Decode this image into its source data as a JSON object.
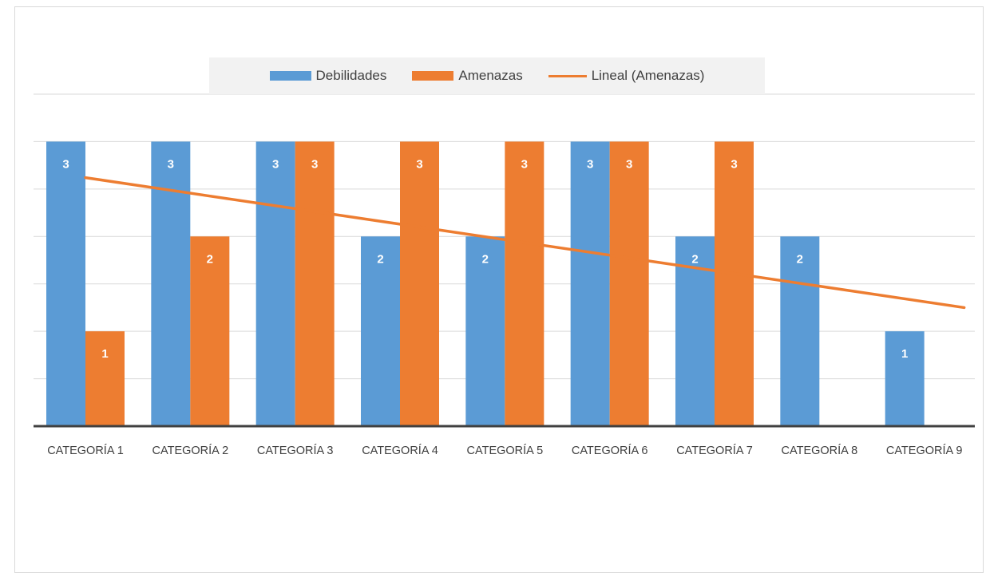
{
  "chart_data": {
    "type": "bar",
    "categories": [
      "CATEGORÍA 1",
      "CATEGORÍA 2",
      "CATEGORÍA 3",
      "CATEGORÍA 4",
      "CATEGORÍA 5",
      "CATEGORÍA 6",
      "CATEGORÍA 7",
      "CATEGORÍA 8",
      "CATEGORÍA 9"
    ],
    "series": [
      {
        "name": "Debilidades",
        "values": [
          3,
          3,
          3,
          2,
          2,
          3,
          2,
          2,
          1
        ],
        "color": "#5b9bd5"
      },
      {
        "name": "Amenazas",
        "values": [
          1,
          2,
          3,
          3,
          3,
          3,
          3,
          null,
          null
        ],
        "color": "#ed7d31"
      }
    ],
    "trendline": {
      "name": "Lineal (Amenazas)",
      "type": "linear",
      "color": "#ed7d31",
      "start": 2.62,
      "end": 1.25
    },
    "ylim": [
      0,
      3.5
    ],
    "gridlines": [
      0.5,
      1,
      1.5,
      2,
      2.5,
      3,
      3.5
    ],
    "grid": true,
    "legend": "top",
    "data_labels": true,
    "title": "",
    "xlabel": "",
    "ylabel": ""
  },
  "legend": {
    "items": [
      {
        "label": "Debilidades",
        "kind": "box",
        "color": "#5b9bd5"
      },
      {
        "label": "Amenazas",
        "kind": "box",
        "color": "#ed7d31"
      },
      {
        "label": "Lineal (Amenazas)",
        "kind": "line",
        "color": "#ed7d31"
      }
    ]
  }
}
